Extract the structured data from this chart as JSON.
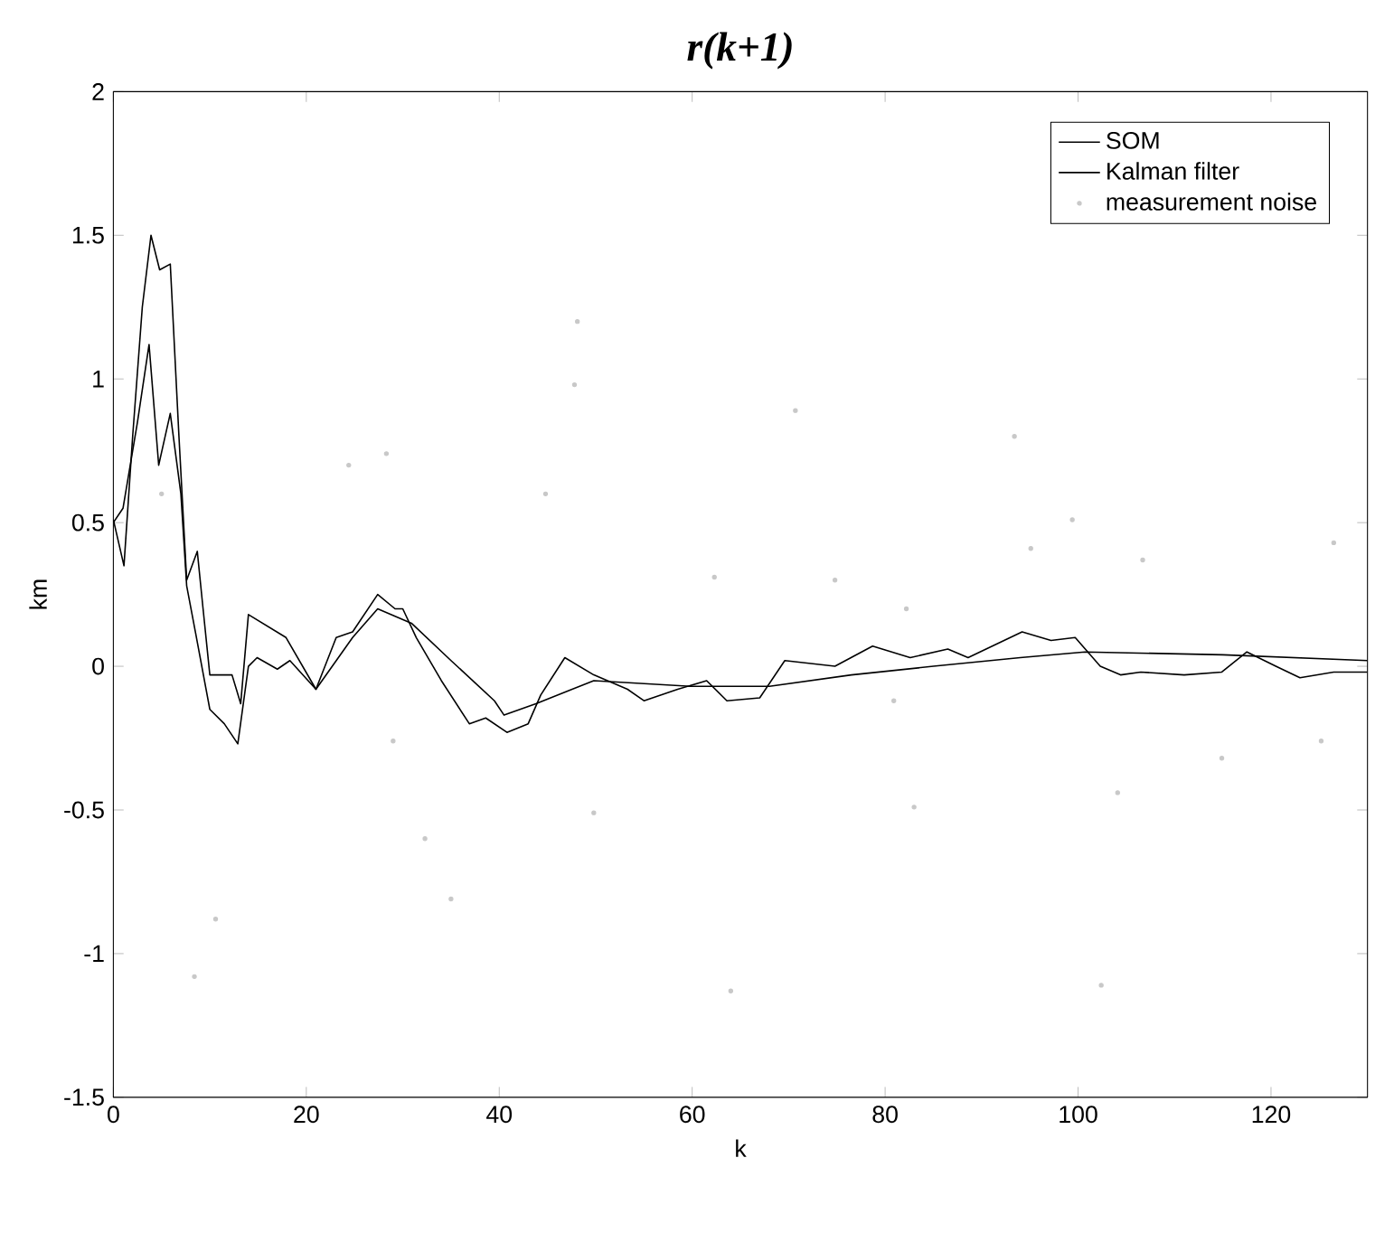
{
  "chart_data": {
    "type": "line",
    "title": "r(k+1)",
    "xlabel": "k",
    "ylabel": "km",
    "xlim": [
      0,
      130
    ],
    "ylim": [
      -1.5,
      2
    ],
    "xticks": [
      0,
      20,
      40,
      60,
      80,
      100,
      120
    ],
    "yticks": [
      -1.5,
      -1,
      -0.5,
      0,
      0.5,
      1,
      1.5,
      2
    ],
    "legend": "top right",
    "grid": false,
    "series": [
      {
        "name": "SOM",
        "color": "#000000",
        "x": [
          0,
          1.1,
          2,
          3,
          3.9,
          4.8,
          5.9,
          6.8,
          7.6,
          8.7,
          9.3,
          10,
          12.3,
          13.2,
          14,
          17.9,
          21,
          24.8,
          27.4,
          30.9,
          35,
          39.5,
          40.5,
          43.8,
          49.8,
          60,
          68,
          76.5,
          85,
          94,
          100.7,
          115,
          130
        ],
        "values": [
          0.51,
          0.35,
          0.8,
          1.25,
          1.5,
          1.38,
          1.4,
          0.8,
          0.3,
          0.4,
          0.2,
          -0.03,
          -0.03,
          -0.13,
          0.18,
          0.1,
          -0.08,
          0.1,
          0.2,
          0.15,
          0.02,
          -0.12,
          -0.17,
          -0.13,
          -0.05,
          -0.07,
          -0.07,
          -0.03,
          0,
          0.03,
          0.05,
          0.04,
          0.02
        ]
      },
      {
        "name": "Kalman filter",
        "color": "#000000",
        "x": [
          0,
          1,
          2.5,
          3.7,
          4.7,
          5.9,
          7,
          7.6,
          8.5,
          10,
          11.5,
          12.9,
          14,
          14.9,
          17,
          18.3,
          21,
          23.1,
          24.8,
          27.4,
          29.2,
          30,
          31.4,
          34,
          36.9,
          38.6,
          40.8,
          43,
          44.3,
          46.8,
          49.8,
          53.3,
          55,
          58.5,
          61.5,
          63.6,
          67,
          69.6,
          74.8,
          78.7,
          82.6,
          86.5,
          88.6,
          94.2,
          97.2,
          99.7,
          102.3,
          104.4,
          106.5,
          111,
          114.9,
          117.5,
          120.5,
          123,
          126.5,
          130
        ],
        "values": [
          0.5,
          0.55,
          0.85,
          1.12,
          0.7,
          0.88,
          0.6,
          0.28,
          0.12,
          -0.15,
          -0.2,
          -0.27,
          0,
          0.03,
          -0.01,
          0.02,
          -0.08,
          0.1,
          0.12,
          0.25,
          0.2,
          0.2,
          0.1,
          -0.05,
          -0.2,
          -0.18,
          -0.23,
          -0.2,
          -0.1,
          0.03,
          -0.03,
          -0.08,
          -0.12,
          -0.08,
          -0.05,
          -0.12,
          -0.11,
          0.02,
          0,
          0.07,
          0.03,
          0.06,
          0.03,
          0.12,
          0.09,
          0.1,
          0,
          -0.03,
          -0.02,
          -0.03,
          -0.02,
          0.05,
          0,
          -0.04,
          -0.02,
          -0.02
        ]
      },
      {
        "name": "measurement noise",
        "type": "scatter",
        "color": "#c8c8c8",
        "x": [
          5,
          8.4,
          10.6,
          24.4,
          28.3,
          29,
          32.3,
          35,
          44.8,
          47.8,
          48.1,
          49.8,
          62.3,
          64,
          70.7,
          74.8,
          80.9,
          82.2,
          83,
          93.4,
          95.1,
          99.4,
          102.4,
          104.1,
          106.7,
          114.9,
          125.2,
          126.5
        ],
        "values": [
          0.6,
          -1.08,
          -0.88,
          0.7,
          0.74,
          -0.26,
          -0.6,
          -0.81,
          0.6,
          0.98,
          1.2,
          -0.51,
          0.31,
          -1.13,
          0.89,
          0.3,
          -0.12,
          0.2,
          -0.49,
          0.8,
          0.41,
          0.51,
          -1.11,
          -0.44,
          0.37,
          -0.32,
          -0.26,
          0.43
        ]
      }
    ]
  }
}
